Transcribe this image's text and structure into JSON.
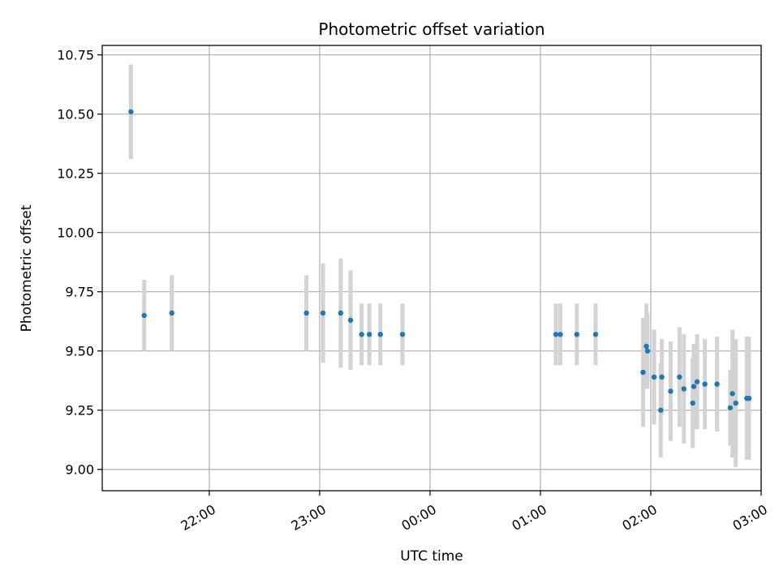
{
  "chart_data": {
    "type": "scatter",
    "title": "Photometric offset variation",
    "xlabel": "UTC time",
    "ylabel": "Photometric offset",
    "x_unit": "UTC hour (22:00 = 22.0, 03:00 = 27.0 next day)",
    "xlim": [
      21.03,
      27.0
    ],
    "ylim": [
      8.91,
      10.79
    ],
    "grid": true,
    "x_ticks": [
      {
        "value": 22.0,
        "label": "22:00"
      },
      {
        "value": 23.0,
        "label": "23:00"
      },
      {
        "value": 24.0,
        "label": "00:00"
      },
      {
        "value": 25.0,
        "label": "01:00"
      },
      {
        "value": 26.0,
        "label": "02:00"
      },
      {
        "value": 27.0,
        "label": "03:00"
      }
    ],
    "y_ticks": [
      {
        "value": 9.0,
        "label": "9.00"
      },
      {
        "value": 9.25,
        "label": "9.25"
      },
      {
        "value": 9.5,
        "label": "9.50"
      },
      {
        "value": 9.75,
        "label": "9.75"
      },
      {
        "value": 10.0,
        "label": "10.00"
      },
      {
        "value": 10.25,
        "label": "10.25"
      },
      {
        "value": 10.5,
        "label": "10.50"
      },
      {
        "value": 10.75,
        "label": "10.75"
      }
    ],
    "colors": {
      "point": "#1f77b4",
      "errorbar": "#d3d3d3",
      "grid": "#b0b0b0"
    },
    "points": [
      {
        "x": 21.29,
        "y": 10.51,
        "err": 0.2
      },
      {
        "x": 21.41,
        "y": 9.65,
        "err": 0.15
      },
      {
        "x": 21.66,
        "y": 9.66,
        "err": 0.16
      },
      {
        "x": 22.88,
        "y": 9.66,
        "err": 0.16
      },
      {
        "x": 23.03,
        "y": 9.66,
        "err": 0.21
      },
      {
        "x": 23.19,
        "y": 9.66,
        "err": 0.23
      },
      {
        "x": 23.28,
        "y": 9.63,
        "err": 0.21
      },
      {
        "x": 23.38,
        "y": 9.57,
        "err": 0.13
      },
      {
        "x": 23.45,
        "y": 9.57,
        "err": 0.13
      },
      {
        "x": 23.55,
        "y": 9.57,
        "err": 0.13
      },
      {
        "x": 23.75,
        "y": 9.57,
        "err": 0.13
      },
      {
        "x": 25.14,
        "y": 9.57,
        "err": 0.13
      },
      {
        "x": 25.18,
        "y": 9.57,
        "err": 0.13
      },
      {
        "x": 25.33,
        "y": 9.57,
        "err": 0.13
      },
      {
        "x": 25.5,
        "y": 9.57,
        "err": 0.13
      },
      {
        "x": 25.93,
        "y": 9.41,
        "err": 0.23
      },
      {
        "x": 25.96,
        "y": 9.52,
        "err": 0.18
      },
      {
        "x": 25.97,
        "y": 9.5,
        "err": 0.16
      },
      {
        "x": 26.03,
        "y": 9.39,
        "err": 0.2
      },
      {
        "x": 26.09,
        "y": 9.25,
        "err": 0.2
      },
      {
        "x": 26.1,
        "y": 9.39,
        "err": 0.16
      },
      {
        "x": 26.18,
        "y": 9.33,
        "err": 0.21
      },
      {
        "x": 26.26,
        "y": 9.39,
        "err": 0.21
      },
      {
        "x": 26.3,
        "y": 9.34,
        "err": 0.23
      },
      {
        "x": 26.38,
        "y": 9.28,
        "err": 0.19
      },
      {
        "x": 26.39,
        "y": 9.35,
        "err": 0.18
      },
      {
        "x": 26.42,
        "y": 9.37,
        "err": 0.2
      },
      {
        "x": 26.49,
        "y": 9.36,
        "err": 0.19
      },
      {
        "x": 26.6,
        "y": 9.36,
        "err": 0.2
      },
      {
        "x": 26.72,
        "y": 9.26,
        "err": 0.16
      },
      {
        "x": 26.74,
        "y": 9.32,
        "err": 0.27
      },
      {
        "x": 26.77,
        "y": 9.28,
        "err": 0.27
      },
      {
        "x": 26.87,
        "y": 9.3,
        "err": 0.26
      },
      {
        "x": 26.89,
        "y": 9.3,
        "err": 0.26
      }
    ]
  }
}
